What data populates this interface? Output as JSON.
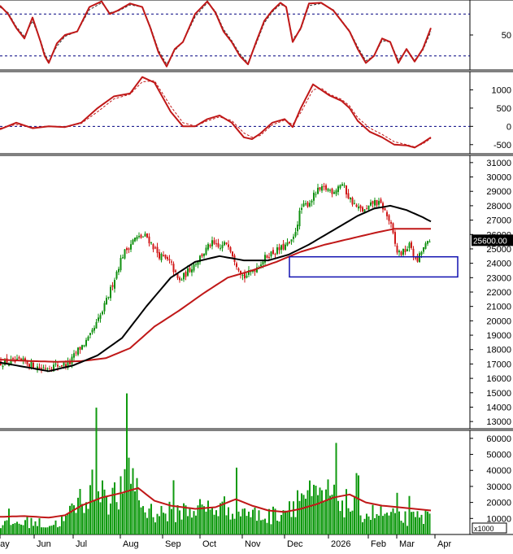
{
  "colors": {
    "up": "#109010",
    "down": "#d01818",
    "volume": "#0f9a0f",
    "ma_short": "#000000",
    "ma_long": "#c01818",
    "indicator": "#c01818",
    "box": "#1010b0",
    "price_tag_bg": "#000000",
    "price_tag_text": "#ffffff",
    "grid_dash": "#000080"
  },
  "chart_data": [
    {
      "type": "line",
      "panel": "stochastic",
      "ylim": [
        0,
        100
      ],
      "yticks": [
        "50"
      ],
      "reference_lines": [
        80,
        20
      ],
      "x": [
        0,
        10,
        20,
        30,
        40,
        50,
        55,
        60,
        70,
        80,
        95,
        110,
        125,
        135,
        145,
        160,
        175,
        185,
        195,
        205,
        215,
        225,
        240,
        255,
        265,
        275,
        285,
        295,
        305,
        315,
        325,
        335,
        345,
        352,
        360,
        370,
        380,
        395,
        410,
        420,
        430,
        440,
        450,
        460,
        470,
        480,
        490,
        500,
        510,
        520,
        530
      ],
      "series": [
        {
          "role": "main",
          "values": [
            92,
            80,
            60,
            45,
            75,
            40,
            20,
            10,
            38,
            50,
            55,
            90,
            98,
            80,
            85,
            95,
            90,
            60,
            25,
            5,
            30,
            40,
            80,
            98,
            82,
            55,
            40,
            20,
            8,
            40,
            70,
            85,
            96,
            90,
            40,
            60,
            95,
            96,
            85,
            70,
            55,
            30,
            10,
            20,
            45,
            40,
            10,
            30,
            12,
            30,
            60
          ]
        },
        {
          "role": "signal",
          "values": [
            90,
            82,
            62,
            48,
            70,
            42,
            24,
            12,
            34,
            48,
            55,
            86,
            96,
            82,
            84,
            93,
            90,
            62,
            28,
            8,
            28,
            40,
            76,
            96,
            84,
            58,
            42,
            23,
            10,
            37,
            67,
            83,
            94,
            90,
            44,
            58,
            92,
            95,
            86,
            71,
            56,
            33,
            13,
            20,
            42,
            40,
            14,
            28,
            14,
            28,
            55
          ]
        }
      ]
    },
    {
      "type": "line",
      "panel": "macd",
      "ylim": [
        -750,
        1500
      ],
      "yticks": [
        "1000",
        "500",
        "0",
        "-500"
      ],
      "reference_lines": [
        0
      ],
      "x": [
        0,
        20,
        40,
        60,
        80,
        100,
        120,
        140,
        160,
        175,
        190,
        210,
        225,
        240,
        255,
        270,
        285,
        300,
        310,
        320,
        335,
        350,
        360,
        370,
        385,
        395,
        405,
        420,
        430,
        440,
        455,
        470,
        485,
        500,
        510,
        520,
        530
      ],
      "series": [
        {
          "role": "main",
          "values": [
            -80,
            100,
            -50,
            0,
            -20,
            100,
            500,
            820,
            900,
            1350,
            1200,
            400,
            0,
            0,
            200,
            300,
            100,
            -300,
            -350,
            -200,
            100,
            200,
            -20,
            500,
            1150,
            1000,
            850,
            700,
            500,
            150,
            -150,
            -300,
            -500,
            -520,
            -580,
            -450,
            -300
          ]
        },
        {
          "role": "signal",
          "values": [
            -50,
            50,
            -30,
            -5,
            -10,
            80,
            400,
            750,
            880,
            1220,
            1250,
            550,
            100,
            10,
            150,
            260,
            160,
            -180,
            -300,
            -250,
            40,
            170,
            50,
            380,
            1000,
            1050,
            880,
            740,
            560,
            240,
            -50,
            -220,
            -420,
            -500,
            -560,
            -480,
            -330
          ]
        }
      ]
    },
    {
      "type": "candlestick",
      "panel": "price",
      "ylim": [
        12500,
        31500
      ],
      "yticks": [
        "31000",
        "30000",
        "29000",
        "28000",
        "27000",
        "26000",
        "25000",
        "24000",
        "23000",
        "22000",
        "21000",
        "20000",
        "19000",
        "18000",
        "17000",
        "16000",
        "15000",
        "14000",
        "13000"
      ],
      "xticks": [
        "May",
        "Jun",
        "Jul",
        "Aug",
        "Sep",
        "Oct",
        "Nov",
        "Dec",
        "2026",
        "Feb",
        "Mar",
        "Apr"
      ],
      "last_price_label": "25600.00",
      "anchors": {
        "close": [
          [
            0,
            17100
          ],
          [
            30,
            17150
          ],
          [
            50,
            16700
          ],
          [
            70,
            16900
          ],
          [
            85,
            17000
          ],
          [
            95,
            17900
          ],
          [
            110,
            18800
          ],
          [
            125,
            20500
          ],
          [
            135,
            22000
          ],
          [
            150,
            24500
          ],
          [
            165,
            25700
          ],
          [
            180,
            25900
          ],
          [
            195,
            24600
          ],
          [
            210,
            24000
          ],
          [
            220,
            22700
          ],
          [
            235,
            23700
          ],
          [
            250,
            24700
          ],
          [
            260,
            25400
          ],
          [
            270,
            25000
          ],
          [
            280,
            25500
          ],
          [
            290,
            24100
          ],
          [
            300,
            23000
          ],
          [
            315,
            23700
          ],
          [
            330,
            24600
          ],
          [
            345,
            25000
          ],
          [
            360,
            25500
          ],
          [
            370,
            27800
          ],
          [
            380,
            28200
          ],
          [
            390,
            29000
          ],
          [
            400,
            29200
          ],
          [
            410,
            29000
          ],
          [
            420,
            29600
          ],
          [
            430,
            28500
          ],
          [
            440,
            27800
          ],
          [
            450,
            27600
          ],
          [
            460,
            28300
          ],
          [
            470,
            28000
          ],
          [
            480,
            26800
          ],
          [
            488,
            24800
          ],
          [
            495,
            24700
          ],
          [
            505,
            25300
          ],
          [
            512,
            24000
          ],
          [
            520,
            25000
          ],
          [
            530,
            25600
          ]
        ],
        "ma_short": [
          [
            0,
            17100
          ],
          [
            30,
            16800
          ],
          [
            60,
            16500
          ],
          [
            90,
            16900
          ],
          [
            120,
            17600
          ],
          [
            150,
            18800
          ],
          [
            180,
            21000
          ],
          [
            210,
            23000
          ],
          [
            240,
            24100
          ],
          [
            270,
            24500
          ],
          [
            300,
            24200
          ],
          [
            330,
            24200
          ],
          [
            355,
            24600
          ],
          [
            380,
            25300
          ],
          [
            410,
            26300
          ],
          [
            440,
            27300
          ],
          [
            460,
            27800
          ],
          [
            480,
            28000
          ],
          [
            500,
            27700
          ],
          [
            520,
            27200
          ],
          [
            530,
            26900
          ]
        ],
        "ma_long": [
          [
            0,
            17300
          ],
          [
            40,
            17200
          ],
          [
            70,
            17150
          ],
          [
            100,
            17200
          ],
          [
            130,
            17400
          ],
          [
            160,
            18100
          ],
          [
            190,
            19600
          ],
          [
            220,
            20700
          ],
          [
            250,
            21900
          ],
          [
            280,
            23000
          ],
          [
            310,
            23500
          ],
          [
            340,
            24100
          ],
          [
            370,
            24800
          ],
          [
            400,
            25300
          ],
          [
            430,
            25700
          ],
          [
            460,
            26100
          ],
          [
            485,
            26400
          ],
          [
            505,
            26400
          ],
          [
            530,
            26400
          ]
        ]
      },
      "annotations": [
        {
          "kind": "box",
          "x0": 356,
          "x1": 563,
          "y0": 23050,
          "y1": 24450
        }
      ]
    },
    {
      "type": "bar",
      "panel": "volume",
      "ylim": [
        0,
        65000
      ],
      "yticks": [
        "60000",
        "50000",
        "40000",
        "30000",
        "20000",
        "10000"
      ],
      "unit_label": "x1000",
      "anchors": {
        "volume": [
          [
            0,
            7000
          ],
          [
            40,
            9000
          ],
          [
            60,
            6000
          ],
          [
            80,
            10000
          ],
          [
            95,
            22000
          ],
          [
            110,
            30000
          ],
          [
            122,
            40000
          ],
          [
            135,
            25000
          ],
          [
            150,
            28000
          ],
          [
            160,
            50000
          ],
          [
            175,
            18000
          ],
          [
            195,
            15000
          ],
          [
            215,
            16000
          ],
          [
            240,
            18000
          ],
          [
            265,
            18000
          ],
          [
            290,
            20000
          ],
          [
            310,
            14000
          ],
          [
            330,
            12000
          ],
          [
            350,
            18000
          ],
          [
            372,
            28000
          ],
          [
            390,
            24000
          ],
          [
            410,
            28000
          ],
          [
            430,
            20000
          ],
          [
            450,
            15000
          ],
          [
            470,
            14000
          ],
          [
            490,
            12000
          ],
          [
            510,
            11000
          ],
          [
            530,
            13000
          ]
        ],
        "volume_ma": [
          [
            0,
            11000
          ],
          [
            30,
            11500
          ],
          [
            60,
            10500
          ],
          [
            80,
            12000
          ],
          [
            100,
            18000
          ],
          [
            125,
            23000
          ],
          [
            150,
            26000
          ],
          [
            170,
            29000
          ],
          [
            190,
            21000
          ],
          [
            210,
            18000
          ],
          [
            240,
            16000
          ],
          [
            265,
            17000
          ],
          [
            290,
            22000
          ],
          [
            310,
            18000
          ],
          [
            330,
            15000
          ],
          [
            350,
            14000
          ],
          [
            370,
            16000
          ],
          [
            390,
            19000
          ],
          [
            410,
            23000
          ],
          [
            430,
            25000
          ],
          [
            450,
            20000
          ],
          [
            470,
            18000
          ],
          [
            490,
            17000
          ],
          [
            510,
            16000
          ],
          [
            530,
            15000
          ]
        ]
      }
    }
  ]
}
